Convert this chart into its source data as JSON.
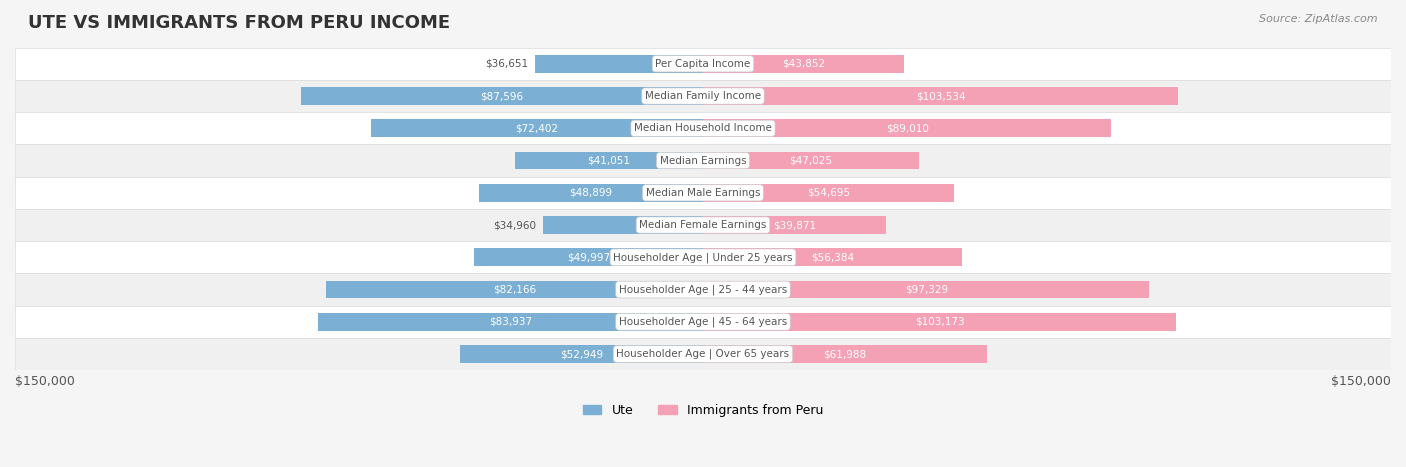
{
  "title": "UTE VS IMMIGRANTS FROM PERU INCOME",
  "source": "Source: ZipAtlas.com",
  "categories": [
    "Per Capita Income",
    "Median Family Income",
    "Median Household Income",
    "Median Earnings",
    "Median Male Earnings",
    "Median Female Earnings",
    "Householder Age | Under 25 years",
    "Householder Age | 25 - 44 years",
    "Householder Age | 45 - 64 years",
    "Householder Age | Over 65 years"
  ],
  "ute_values": [
    36651,
    87596,
    72402,
    41051,
    48899,
    34960,
    49997,
    82166,
    83937,
    52949
  ],
  "peru_values": [
    43852,
    103534,
    89010,
    47025,
    54695,
    39871,
    56384,
    97329,
    103173,
    61988
  ],
  "ute_color": "#7bafd4",
  "ute_color_dark": "#5b8ec4",
  "peru_color": "#f4a0b5",
  "peru_color_dark": "#f06090",
  "max_value": 150000,
  "bar_height": 0.55,
  "background_color": "#f5f5f5",
  "row_bg_light": "#ffffff",
  "row_bg_dark": "#f0f0f0",
  "label_color_dark": "#555555",
  "label_color_white": "#ffffff",
  "center_label_bg": "#ffffff",
  "center_label_color": "#555555",
  "legend_ute_label": "Ute",
  "legend_peru_label": "Immigrants from Peru",
  "x_label_left": "$150,000",
  "x_label_right": "$150,000"
}
